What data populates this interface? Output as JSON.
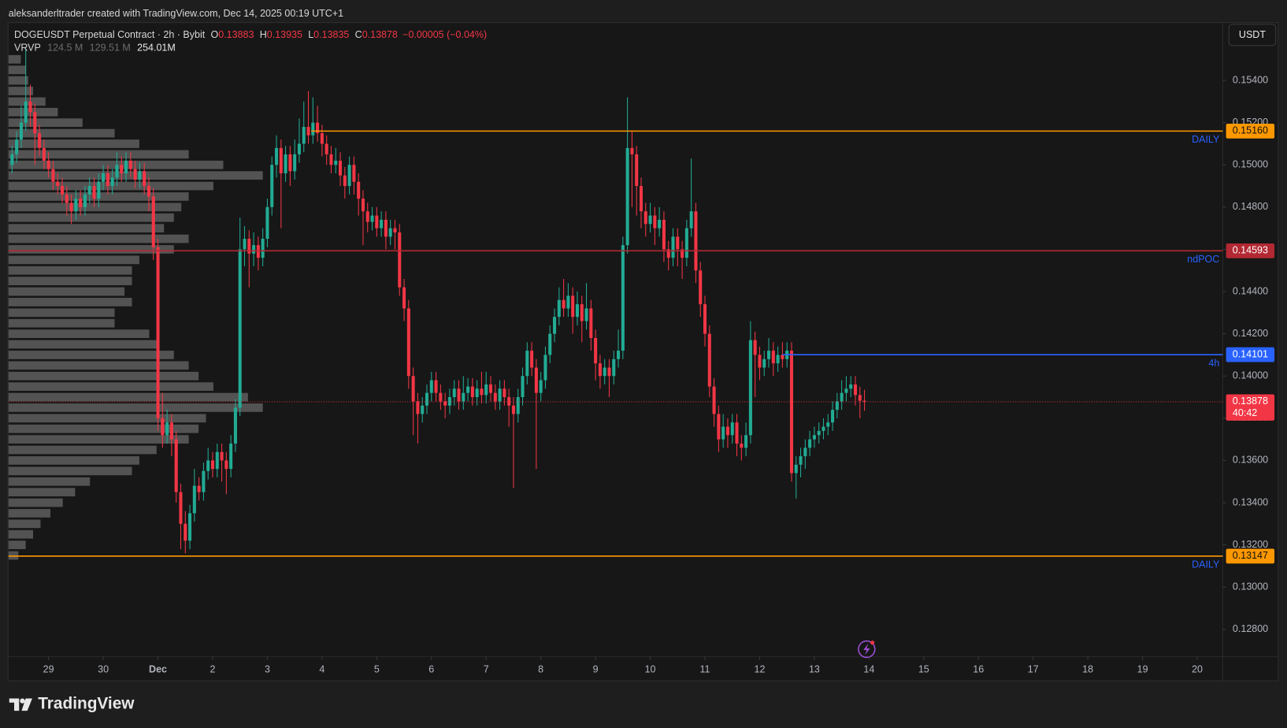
{
  "attribution": "aleksanderltrader created with TradingView.com, Dec 14, 2025 00:19 UTC+1",
  "logo": "TradingView",
  "chart_data": {
    "type": "candlestick",
    "title": "DOGEUSDT Perpetual Contract · 2h · Bybit",
    "ohlc_labels": [
      "O",
      "H",
      "L",
      "C"
    ],
    "change": "−0.00005 (−0.04%)",
    "indicator": {
      "name": "VRVP",
      "values_text": [
        "124.5 M",
        "129.51 M",
        "254.01M"
      ]
    },
    "currency": "USDT",
    "countdown": "40:42",
    "up_color": "#22ab94",
    "down_color": "#f23645",
    "candles": [
      [
        0.15,
        0.1509,
        0.1496,
        0.1505
      ],
      [
        0.1505,
        0.1516,
        0.1501,
        0.1512
      ],
      [
        0.1512,
        0.1528,
        0.1508,
        0.152
      ],
      [
        0.152,
        0.1555,
        0.1516,
        0.153
      ],
      [
        0.153,
        0.1538,
        0.1518,
        0.1525
      ],
      [
        0.1525,
        0.1529,
        0.15,
        0.1515
      ],
      [
        0.1515,
        0.1519,
        0.1504,
        0.1508
      ],
      [
        0.1508,
        0.1512,
        0.1498,
        0.1502
      ],
      [
        0.1502,
        0.1506,
        0.1494,
        0.1498
      ],
      [
        0.1498,
        0.1502,
        0.1488,
        0.1492
      ],
      [
        0.1492,
        0.1496,
        0.1486,
        0.149
      ],
      [
        0.149,
        0.1494,
        0.1482,
        0.1486
      ],
      [
        0.1486,
        0.149,
        0.1476,
        0.1482
      ],
      [
        0.1482,
        0.1486,
        0.1472,
        0.1478
      ],
      [
        0.1478,
        0.1488,
        0.1474,
        0.1484
      ],
      [
        0.1484,
        0.1488,
        0.1476,
        0.148
      ],
      [
        0.148,
        0.149,
        0.1476,
        0.1486
      ],
      [
        0.1486,
        0.1494,
        0.1482,
        0.149
      ],
      [
        0.149,
        0.1494,
        0.148,
        0.1484
      ],
      [
        0.1484,
        0.1496,
        0.148,
        0.1492
      ],
      [
        0.1492,
        0.15,
        0.1488,
        0.1496
      ],
      [
        0.1496,
        0.15,
        0.1486,
        0.149
      ],
      [
        0.149,
        0.1498,
        0.1486,
        0.1494
      ],
      [
        0.1494,
        0.1506,
        0.149,
        0.15
      ],
      [
        0.15,
        0.1504,
        0.1492,
        0.1496
      ],
      [
        0.1496,
        0.1506,
        0.1492,
        0.1502
      ],
      [
        0.1502,
        0.1506,
        0.1494,
        0.1498
      ],
      [
        0.1498,
        0.1502,
        0.1489,
        0.1493
      ],
      [
        0.1493,
        0.1501,
        0.1489,
        0.1497
      ],
      [
        0.1497,
        0.1501,
        0.1486,
        0.149
      ],
      [
        0.149,
        0.1494,
        0.1478,
        0.1485
      ],
      [
        0.1485,
        0.1489,
        0.1455,
        0.1461
      ],
      [
        0.1461,
        0.1465,
        0.1374,
        0.138
      ],
      [
        0.138,
        0.1392,
        0.1366,
        0.1372
      ],
      [
        0.1372,
        0.1384,
        0.1368,
        0.1378
      ],
      [
        0.1378,
        0.1382,
        0.1362,
        0.137
      ],
      [
        0.137,
        0.1374,
        0.134,
        0.1345
      ],
      [
        0.1345,
        0.1349,
        0.1318,
        0.133
      ],
      [
        0.133,
        0.1336,
        0.1316,
        0.1322
      ],
      [
        0.1322,
        0.1339,
        0.1318,
        0.1335
      ],
      [
        0.1335,
        0.1356,
        0.1331,
        0.1348
      ],
      [
        0.1348,
        0.1352,
        0.1341,
        0.1345
      ],
      [
        0.1345,
        0.1359,
        0.1341,
        0.1355
      ],
      [
        0.1355,
        0.1366,
        0.1351,
        0.136
      ],
      [
        0.136,
        0.1364,
        0.1352,
        0.1356
      ],
      [
        0.1356,
        0.1368,
        0.1352,
        0.1364
      ],
      [
        0.1364,
        0.1368,
        0.135,
        0.136
      ],
      [
        0.136,
        0.1364,
        0.1344,
        0.1356
      ],
      [
        0.1356,
        0.1372,
        0.1352,
        0.1368
      ],
      [
        0.1368,
        0.1389,
        0.1364,
        0.1385
      ],
      [
        0.1385,
        0.1475,
        0.1381,
        0.146
      ],
      [
        0.146,
        0.1471,
        0.1452,
        0.1465
      ],
      [
        0.1465,
        0.1469,
        0.1442,
        0.1458
      ],
      [
        0.1458,
        0.1468,
        0.1452,
        0.1462
      ],
      [
        0.1462,
        0.1466,
        0.145,
        0.1456
      ],
      [
        0.1456,
        0.147,
        0.1452,
        0.1465
      ],
      [
        0.1465,
        0.1484,
        0.1461,
        0.148
      ],
      [
        0.148,
        0.1504,
        0.1476,
        0.15
      ],
      [
        0.15,
        0.1514,
        0.1494,
        0.1508
      ],
      [
        0.1508,
        0.1512,
        0.147,
        0.1496
      ],
      [
        0.1496,
        0.1509,
        0.1492,
        0.1505
      ],
      [
        0.1505,
        0.1509,
        0.149,
        0.1497
      ],
      [
        0.1497,
        0.1512,
        0.1493,
        0.1505
      ],
      [
        0.1505,
        0.1522,
        0.1501,
        0.151
      ],
      [
        0.151,
        0.153,
        0.1506,
        0.1518
      ],
      [
        0.1518,
        0.1535,
        0.151,
        0.1514
      ],
      [
        0.1514,
        0.1532,
        0.151,
        0.152
      ],
      [
        0.152,
        0.1528,
        0.1511,
        0.1515
      ],
      [
        0.1515,
        0.1519,
        0.1504,
        0.151
      ],
      [
        0.151,
        0.1514,
        0.15,
        0.1505
      ],
      [
        0.1505,
        0.1509,
        0.1496,
        0.15
      ],
      [
        0.15,
        0.1508,
        0.1496,
        0.1502
      ],
      [
        0.1502,
        0.1506,
        0.149,
        0.1495
      ],
      [
        0.1495,
        0.1499,
        0.1484,
        0.149
      ],
      [
        0.149,
        0.1504,
        0.1486,
        0.15
      ],
      [
        0.15,
        0.1504,
        0.1486,
        0.1492
      ],
      [
        0.1492,
        0.1496,
        0.1476,
        0.1484
      ],
      [
        0.1484,
        0.1488,
        0.1462,
        0.1478
      ],
      [
        0.1478,
        0.1482,
        0.1468,
        0.1473
      ],
      [
        0.1473,
        0.148,
        0.1469,
        0.1476
      ],
      [
        0.1476,
        0.148,
        0.1466,
        0.147
      ],
      [
        0.147,
        0.1478,
        0.1466,
        0.1474
      ],
      [
        0.1474,
        0.1478,
        0.146,
        0.1466
      ],
      [
        0.1466,
        0.1474,
        0.1462,
        0.147
      ],
      [
        0.147,
        0.1474,
        0.146,
        0.1468
      ],
      [
        0.1468,
        0.1472,
        0.1438,
        0.1442
      ],
      [
        0.1442,
        0.1446,
        0.1426,
        0.1432
      ],
      [
        0.1432,
        0.1436,
        0.1394,
        0.14
      ],
      [
        0.14,
        0.1404,
        0.1372,
        0.1388
      ],
      [
        0.1388,
        0.1392,
        0.1368,
        0.1382
      ],
      [
        0.1382,
        0.139,
        0.1378,
        0.1386
      ],
      [
        0.1386,
        0.1396,
        0.1382,
        0.1392
      ],
      [
        0.1392,
        0.1402,
        0.1388,
        0.1398
      ],
      [
        0.1398,
        0.1402,
        0.1388,
        0.1392
      ],
      [
        0.1392,
        0.1396,
        0.1384,
        0.1388
      ],
      [
        0.1388,
        0.1392,
        0.138,
        0.1386
      ],
      [
        0.1386,
        0.1394,
        0.1382,
        0.139
      ],
      [
        0.139,
        0.1398,
        0.1386,
        0.1394
      ],
      [
        0.1394,
        0.1398,
        0.1384,
        0.1388
      ],
      [
        0.1388,
        0.14,
        0.1384,
        0.1392
      ],
      [
        0.1392,
        0.1399,
        0.1388,
        0.1395
      ],
      [
        0.1395,
        0.1399,
        0.1386,
        0.139
      ],
      [
        0.139,
        0.1398,
        0.1386,
        0.1394
      ],
      [
        0.1394,
        0.1402,
        0.1387,
        0.1391
      ],
      [
        0.1391,
        0.1402,
        0.1387,
        0.1396
      ],
      [
        0.1396,
        0.14,
        0.1388,
        0.1392
      ],
      [
        0.1392,
        0.1396,
        0.1384,
        0.1388
      ],
      [
        0.1388,
        0.1398,
        0.1384,
        0.1394
      ],
      [
        0.1394,
        0.1398,
        0.1386,
        0.139
      ],
      [
        0.139,
        0.1394,
        0.1376,
        0.1386
      ],
      [
        0.1386,
        0.139,
        0.1347,
        0.1382
      ],
      [
        0.1382,
        0.1394,
        0.1378,
        0.139
      ],
      [
        0.139,
        0.1404,
        0.1386,
        0.14
      ],
      [
        0.14,
        0.1416,
        0.1396,
        0.1412
      ],
      [
        0.1412,
        0.1416,
        0.14,
        0.1404
      ],
      [
        0.1404,
        0.1408,
        0.1356,
        0.1392
      ],
      [
        0.1392,
        0.1402,
        0.1388,
        0.1398
      ],
      [
        0.1398,
        0.1414,
        0.1394,
        0.141
      ],
      [
        0.141,
        0.1424,
        0.1406,
        0.142
      ],
      [
        0.142,
        0.1432,
        0.1416,
        0.1428
      ],
      [
        0.1428,
        0.1442,
        0.1424,
        0.1436
      ],
      [
        0.1436,
        0.1446,
        0.1428,
        0.1432
      ],
      [
        0.1432,
        0.1444,
        0.1428,
        0.1438
      ],
      [
        0.1438,
        0.1442,
        0.142,
        0.1428
      ],
      [
        0.1428,
        0.144,
        0.1424,
        0.1434
      ],
      [
        0.1434,
        0.1438,
        0.1416,
        0.1426
      ],
      [
        0.1426,
        0.1444,
        0.1422,
        0.1432
      ],
      [
        0.1432,
        0.1436,
        0.1412,
        0.1418
      ],
      [
        0.1418,
        0.1422,
        0.1398,
        0.1406
      ],
      [
        0.1406,
        0.141,
        0.1394,
        0.14
      ],
      [
        0.14,
        0.1408,
        0.1396,
        0.1404
      ],
      [
        0.1404,
        0.1408,
        0.139,
        0.14
      ],
      [
        0.14,
        0.1412,
        0.1396,
        0.1408
      ],
      [
        0.1408,
        0.1422,
        0.1404,
        0.1412
      ],
      [
        0.1412,
        0.1466,
        0.1408,
        0.1462
      ],
      [
        0.1462,
        0.1532,
        0.1458,
        0.1508
      ],
      [
        0.1508,
        0.1516,
        0.148,
        0.1505
      ],
      [
        0.1505,
        0.1509,
        0.1476,
        0.149
      ],
      [
        0.149,
        0.1494,
        0.147,
        0.1478
      ],
      [
        0.1478,
        0.1482,
        0.1466,
        0.1472
      ],
      [
        0.1472,
        0.1482,
        0.1468,
        0.1476
      ],
      [
        0.1476,
        0.148,
        0.1462,
        0.147
      ],
      [
        0.147,
        0.148,
        0.1466,
        0.1474
      ],
      [
        0.1474,
        0.1478,
        0.1454,
        0.146
      ],
      [
        0.146,
        0.1464,
        0.145,
        0.1456
      ],
      [
        0.1456,
        0.147,
        0.1452,
        0.1466
      ],
      [
        0.1466,
        0.147,
        0.1452,
        0.146
      ],
      [
        0.146,
        0.1464,
        0.1446,
        0.1456
      ],
      [
        0.1456,
        0.1474,
        0.1452,
        0.147
      ],
      [
        0.147,
        0.1503,
        0.1466,
        0.1478
      ],
      [
        0.1478,
        0.1482,
        0.1444,
        0.145
      ],
      [
        0.145,
        0.1454,
        0.1428,
        0.1434
      ],
      [
        0.1434,
        0.1438,
        0.1414,
        0.142
      ],
      [
        0.142,
        0.1424,
        0.139,
        0.1395
      ],
      [
        0.1395,
        0.1399,
        0.1376,
        0.1382
      ],
      [
        0.1382,
        0.1386,
        0.1364,
        0.137
      ],
      [
        0.137,
        0.1382,
        0.1366,
        0.1376
      ],
      [
        0.1376,
        0.138,
        0.1366,
        0.1372
      ],
      [
        0.1372,
        0.1382,
        0.1368,
        0.1378
      ],
      [
        0.1378,
        0.1382,
        0.1362,
        0.1368
      ],
      [
        0.1368,
        0.1372,
        0.136,
        0.1366
      ],
      [
        0.1366,
        0.1378,
        0.1362,
        0.1372
      ],
      [
        0.1372,
        0.1426,
        0.1368,
        0.1417
      ],
      [
        0.1417,
        0.1421,
        0.139,
        0.141
      ],
      [
        0.141,
        0.1414,
        0.1398,
        0.1404
      ],
      [
        0.1404,
        0.1412,
        0.14,
        0.1408
      ],
      [
        0.1408,
        0.1418,
        0.1404,
        0.1412
      ],
      [
        0.1412,
        0.1416,
        0.14,
        0.1406
      ],
      [
        0.1406,
        0.1414,
        0.1402,
        0.141
      ],
      [
        0.141,
        0.1416,
        0.1404,
        0.1408
      ],
      [
        0.1408,
        0.1416,
        0.1404,
        0.1412
      ],
      [
        0.1412,
        0.1416,
        0.135,
        0.1354
      ],
      [
        0.1354,
        0.1362,
        0.1342,
        0.1358
      ],
      [
        0.1358,
        0.1366,
        0.1352,
        0.1362
      ],
      [
        0.1362,
        0.137,
        0.1356,
        0.1366
      ],
      [
        0.1366,
        0.1374,
        0.1362,
        0.137
      ],
      [
        0.137,
        0.1376,
        0.1366,
        0.1372
      ],
      [
        0.1372,
        0.1378,
        0.1368,
        0.1374
      ],
      [
        0.1374,
        0.138,
        0.137,
        0.1376
      ],
      [
        0.1376,
        0.1382,
        0.1372,
        0.1378
      ],
      [
        0.1378,
        0.1388,
        0.1374,
        0.1384
      ],
      [
        0.1384,
        0.1392,
        0.138,
        0.1388
      ],
      [
        0.1388,
        0.1398,
        0.1384,
        0.1392
      ],
      [
        0.1392,
        0.14,
        0.1388,
        0.1394
      ],
      [
        0.1394,
        0.14,
        0.139,
        0.1396
      ],
      [
        0.1396,
        0.14,
        0.1386,
        0.1391
      ],
      [
        0.1391,
        0.1395,
        0.138,
        0.13883
      ],
      [
        0.13883,
        0.13935,
        0.13835,
        0.13878
      ]
    ],
    "volume_profile": {
      "color": "#a8a8a8",
      "levels": [
        0.155,
        0.1545,
        0.154,
        0.1535,
        0.153,
        0.1525,
        0.152,
        0.1515,
        0.151,
        0.1505,
        0.15,
        0.1495,
        0.149,
        0.1485,
        0.148,
        0.1475,
        0.147,
        0.1465,
        0.146,
        0.1455,
        0.145,
        0.1445,
        0.144,
        0.1435,
        0.143,
        0.1425,
        0.142,
        0.1415,
        0.141,
        0.1405,
        0.14,
        0.1395,
        0.139,
        0.1385,
        0.138,
        0.1375,
        0.137,
        0.1365,
        0.136,
        0.1355,
        0.135,
        0.1345,
        0.134,
        0.1335,
        0.133,
        0.1325,
        0.132,
        0.1315
      ],
      "volumes": [
        0.5,
        0.7,
        0.8,
        1.0,
        1.5,
        2.0,
        3.0,
        4.3,
        5.3,
        7.3,
        8.7,
        10.3,
        8.3,
        7.3,
        7.0,
        6.7,
        6.3,
        7.3,
        6.7,
        5.3,
        5.0,
        5.0,
        4.7,
        5.0,
        4.3,
        4.3,
        5.7,
        6.0,
        6.7,
        7.3,
        7.7,
        8.3,
        9.7,
        10.3,
        8.0,
        7.7,
        7.3,
        6.0,
        5.3,
        5.0,
        3.3,
        2.7,
        2.2,
        1.7,
        1.3,
        1.0,
        0.7,
        0.4
      ]
    },
    "levels": [
      {
        "name": "DAILY",
        "value": 0.1516,
        "label": "0.15160",
        "color": "#ff9800",
        "x_start": 65.6
      },
      {
        "name": "ndPOC",
        "value": 0.14593,
        "label": "0.14593",
        "color": "#b22833"
      },
      {
        "name": "4h",
        "value": 0.14101,
        "label": "0.14101",
        "color": "#2962ff",
        "x_start": 169
      },
      {
        "name": "DAILY",
        "value": 0.13147,
        "label": "0.13147",
        "color": "#ff9800"
      }
    ],
    "xlim": [
      -0.8,
      265.6
    ],
    "xticks": [
      {
        "value": 8,
        "label": "29"
      },
      {
        "value": 20,
        "label": "30"
      },
      {
        "value": 32,
        "label": "Dec"
      },
      {
        "value": 44,
        "label": "2"
      },
      {
        "value": 56,
        "label": "3"
      },
      {
        "value": 68,
        "label": "4"
      },
      {
        "value": 80,
        "label": "5"
      },
      {
        "value": 92,
        "label": "6"
      },
      {
        "value": 104,
        "label": "7"
      },
      {
        "value": 116,
        "label": "8"
      },
      {
        "value": 128,
        "label": "9"
      },
      {
        "value": 140,
        "label": "10"
      },
      {
        "value": 152,
        "label": "11"
      },
      {
        "value": 164,
        "label": "12"
      },
      {
        "value": 176,
        "label": "13"
      },
      {
        "value": 188,
        "label": "14"
      },
      {
        "value": 200,
        "label": "15"
      },
      {
        "value": 212,
        "label": "16"
      },
      {
        "value": 224,
        "label": "17"
      },
      {
        "value": 236,
        "label": "18"
      },
      {
        "value": 248,
        "label": "19"
      },
      {
        "value": 260,
        "label": "20"
      }
    ],
    "ylim": [
      0.12671,
      0.15676
    ],
    "yticks": [
      {
        "value": 0.128,
        "label": "0.12800"
      },
      {
        "value": 0.13,
        "label": "0.13000"
      },
      {
        "value": 0.132,
        "label": "0.13200"
      },
      {
        "value": 0.134,
        "label": "0.13400"
      },
      {
        "value": 0.136,
        "label": "0.13600"
      },
      {
        "value": 0.138,
        "label": "0.13800"
      },
      {
        "value": 0.14,
        "label": "0.14000"
      },
      {
        "value": 0.142,
        "label": "0.14200"
      },
      {
        "value": 0.144,
        "label": "0.14400"
      },
      {
        "value": 0.146,
        "label": "0.14600"
      },
      {
        "value": 0.148,
        "label": "0.14800"
      },
      {
        "value": 0.15,
        "label": "0.15000"
      },
      {
        "value": 0.152,
        "label": "0.15200"
      },
      {
        "value": 0.154,
        "label": "0.15400"
      }
    ],
    "grid": false
  }
}
